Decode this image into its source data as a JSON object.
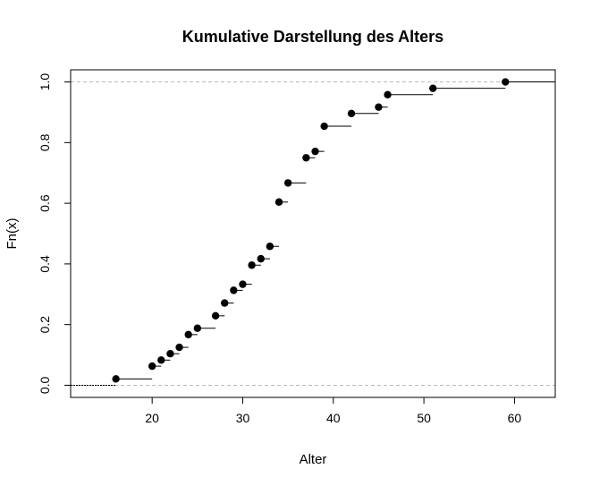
{
  "chart_data": {
    "type": "line",
    "subtype": "ecdf-step",
    "title": "Kumulative Darstellung des Alters",
    "xlabel": "Alter",
    "ylabel": "Fn(x)",
    "xlim": [
      11,
      64.5
    ],
    "ylim": [
      -0.04,
      1.04
    ],
    "x_ticks": [
      20,
      30,
      40,
      50,
      60
    ],
    "y_ticks": [
      0.0,
      0.2,
      0.4,
      0.6,
      0.8,
      1.0
    ],
    "x_tick_labels": [
      "20",
      "30",
      "40",
      "50",
      "60"
    ],
    "y_tick_labels": [
      "0.0",
      "0.2",
      "0.4",
      "0.6",
      "0.8",
      "1.0"
    ],
    "reference_lines_y": [
      0,
      1
    ],
    "grid": false,
    "colors": {
      "line": "#000000",
      "point": "#000000",
      "reference": "#bbbbbb"
    },
    "points": [
      {
        "x": 16,
        "y": 0.021
      },
      {
        "x": 20,
        "y": 0.063
      },
      {
        "x": 21,
        "y": 0.083
      },
      {
        "x": 22,
        "y": 0.104
      },
      {
        "x": 23,
        "y": 0.125
      },
      {
        "x": 24,
        "y": 0.167
      },
      {
        "x": 25,
        "y": 0.188
      },
      {
        "x": 27,
        "y": 0.229
      },
      {
        "x": 28,
        "y": 0.271
      },
      {
        "x": 29,
        "y": 0.313
      },
      {
        "x": 30,
        "y": 0.333
      },
      {
        "x": 31,
        "y": 0.396
      },
      {
        "x": 32,
        "y": 0.417
      },
      {
        "x": 33,
        "y": 0.458
      },
      {
        "x": 34,
        "y": 0.604
      },
      {
        "x": 35,
        "y": 0.667
      },
      {
        "x": 37,
        "y": 0.75
      },
      {
        "x": 38,
        "y": 0.771
      },
      {
        "x": 39,
        "y": 0.854
      },
      {
        "x": 42,
        "y": 0.896
      },
      {
        "x": 45,
        "y": 0.917
      },
      {
        "x": 46,
        "y": 0.958
      },
      {
        "x": 51,
        "y": 0.979
      },
      {
        "x": 59,
        "y": 1.0
      }
    ]
  }
}
